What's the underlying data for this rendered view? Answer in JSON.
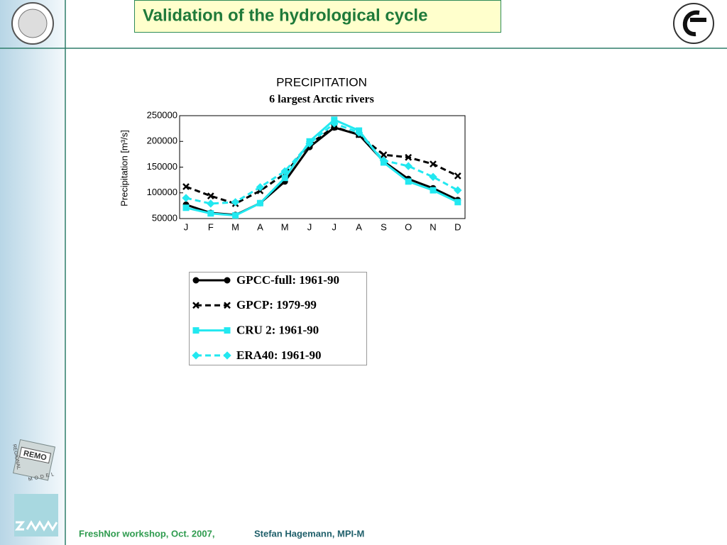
{
  "slide": {
    "title": "Validation of the hydrological cycle",
    "footer": {
      "event": "FreshNor workshop, Oct. 2007,",
      "author": "Stefan Hagemann, MPI-M"
    },
    "logo": {
      "name": "REMO",
      "top": "REGIONAL",
      "bottom": "MODEL"
    }
  },
  "chart_data": {
    "type": "line",
    "title": "PRECIPITATION",
    "subtitle": "6 largest Arctic rivers",
    "y_label": "Precipitation [m³/s]",
    "categories": [
      "J",
      "F",
      "M",
      "A",
      "M",
      "J",
      "J",
      "A",
      "S",
      "O",
      "N",
      "D"
    ],
    "ylim": [
      50000,
      250000
    ],
    "yticks": [
      50000,
      100000,
      150000,
      200000,
      250000
    ],
    "grid": false,
    "series": [
      {
        "name": "GPCC-full: 1961-90",
        "color": "#000000",
        "dash": false,
        "marker": "circle",
        "values": [
          77000,
          61000,
          57000,
          80000,
          122000,
          189000,
          227000,
          213000,
          161000,
          127000,
          109000,
          86000
        ]
      },
      {
        "name": "GPCP: 1979-99",
        "color": "#000000",
        "dash": true,
        "marker": "cross",
        "values": [
          112000,
          94000,
          79000,
          104000,
          137000,
          195000,
          228000,
          213000,
          174000,
          169000,
          156000,
          133000
        ]
      },
      {
        "name": "CRU 2: 1961-90",
        "color": "#22e8f0",
        "dash": false,
        "marker": "square",
        "values": [
          71000,
          60000,
          56000,
          80000,
          129000,
          200000,
          242000,
          221000,
          159000,
          122000,
          105000,
          82000
        ]
      },
      {
        "name": "ERA40: 1961-90",
        "color": "#22e8f0",
        "dash": true,
        "marker": "diamond",
        "values": [
          90000,
          79000,
          82000,
          111000,
          142000,
          196000,
          235000,
          217000,
          163000,
          152000,
          131000,
          105000
        ]
      }
    ]
  }
}
